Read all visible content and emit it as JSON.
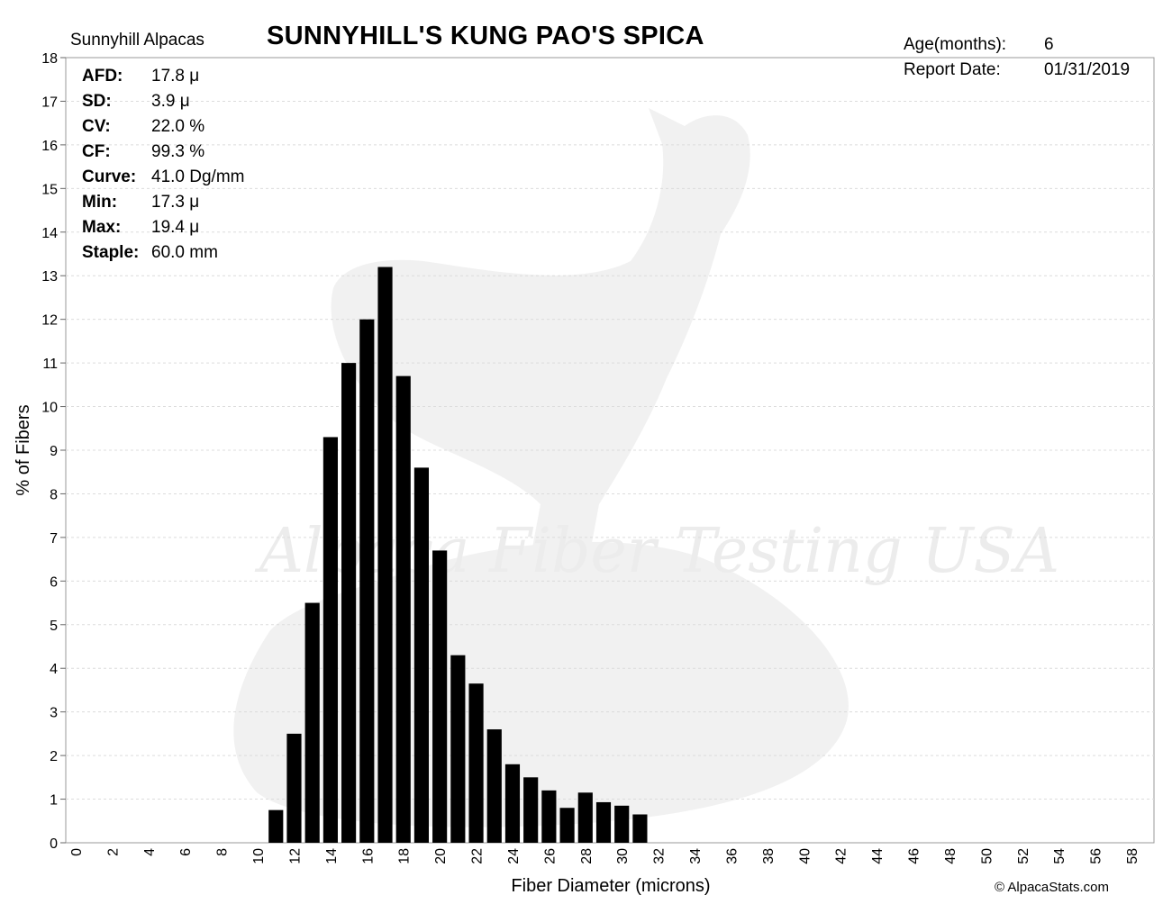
{
  "farm": "Sunnyhill Alpacas",
  "title": "SUNNYHILL'S KUNG PAO'S SPICA",
  "age_label": "Age(months):",
  "age_value": "6",
  "report_date_label": "Report Date:",
  "report_date_value": "01/31/2019",
  "watermark": "Alpaca Fiber Testing USA",
  "credit": "© AlpacaStats.com",
  "stats": [
    {
      "label": "AFD:",
      "value": "17.8 μ"
    },
    {
      "label": "SD:",
      "value": "3.9 μ"
    },
    {
      "label": "CV:",
      "value": "22.0 %"
    },
    {
      "label": "CF:",
      "value": "99.3 %"
    },
    {
      "label": "Curve:",
      "value": "41.0 Dg/mm"
    },
    {
      "label": "Min:",
      "value": "17.3 μ"
    },
    {
      "label": "Max:",
      "value": "19.4 μ"
    },
    {
      "label": "Staple:",
      "value": "60.0 mm"
    }
  ],
  "chart_data": {
    "type": "bar",
    "xlabel": "Fiber Diameter (microns)",
    "ylabel": "% of Fibers",
    "xlim": [
      0,
      58
    ],
    "ylim": [
      0,
      18
    ],
    "xticks": [
      0,
      2,
      4,
      6,
      8,
      10,
      12,
      14,
      16,
      18,
      20,
      22,
      24,
      26,
      28,
      30,
      32,
      34,
      36,
      38,
      40,
      42,
      44,
      46,
      48,
      50,
      52,
      54,
      56,
      58
    ],
    "yticks": [
      0,
      1,
      2,
      3,
      4,
      5,
      6,
      7,
      8,
      9,
      10,
      11,
      12,
      13,
      14,
      15,
      16,
      17,
      18
    ],
    "grid": "horizontal dashed",
    "color": "#000000",
    "x": [
      11,
      12,
      13,
      14,
      15,
      16,
      17,
      18,
      19,
      20,
      21,
      22,
      23,
      24,
      25,
      26,
      27,
      28,
      29,
      30,
      31
    ],
    "values": [
      0.75,
      2.5,
      5.5,
      9.3,
      11.0,
      12.0,
      13.2,
      10.7,
      8.6,
      6.7,
      4.3,
      3.65,
      2.6,
      1.8,
      1.5,
      1.2,
      0.8,
      1.15,
      0.93,
      0.85,
      0.65
    ]
  }
}
